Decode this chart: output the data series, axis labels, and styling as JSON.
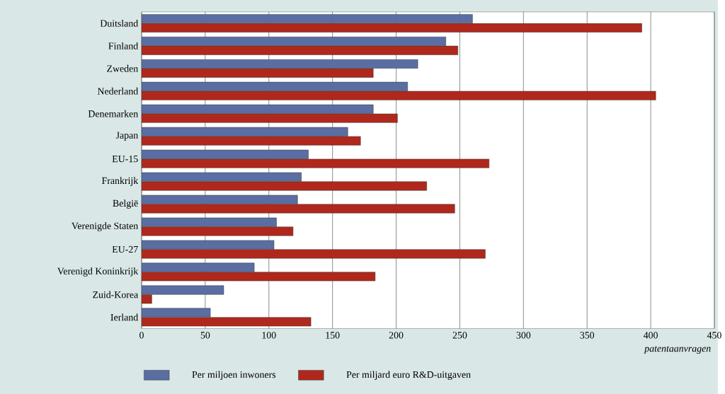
{
  "chart_data": {
    "type": "bar",
    "orientation": "horizontal",
    "xlabel": "patentaanvragen",
    "categories": [
      "Duitsland",
      "Finland",
      "Zweden",
      "Nederland",
      "Denemarken",
      "Japan",
      "EU-15",
      "Frankrijk",
      "België",
      "Verenigde Staten",
      "EU-27",
      "Verenigd Koninkrijk",
      "Zuid-Korea",
      "Ierland"
    ],
    "series": [
      {
        "name": "Per miljoen inwoners",
        "color": "#5a6ea3",
        "values": [
          260,
          239,
          217,
          209,
          182,
          162,
          131,
          125.5,
          122.5,
          106,
          104,
          88.5,
          64.5,
          54
        ]
      },
      {
        "name": "Per miljard euro R&D-uitgaven",
        "color": "#b0281c",
        "values": [
          393,
          248.5,
          182,
          404,
          201,
          172,
          273,
          224,
          246,
          119,
          270,
          183.5,
          8,
          133
        ]
      }
    ],
    "xlim": [
      0,
      450
    ],
    "xticks": [
      0,
      50,
      100,
      150,
      200,
      250,
      300,
      350,
      400,
      450
    ],
    "grid": "x",
    "legend": "bottom"
  }
}
